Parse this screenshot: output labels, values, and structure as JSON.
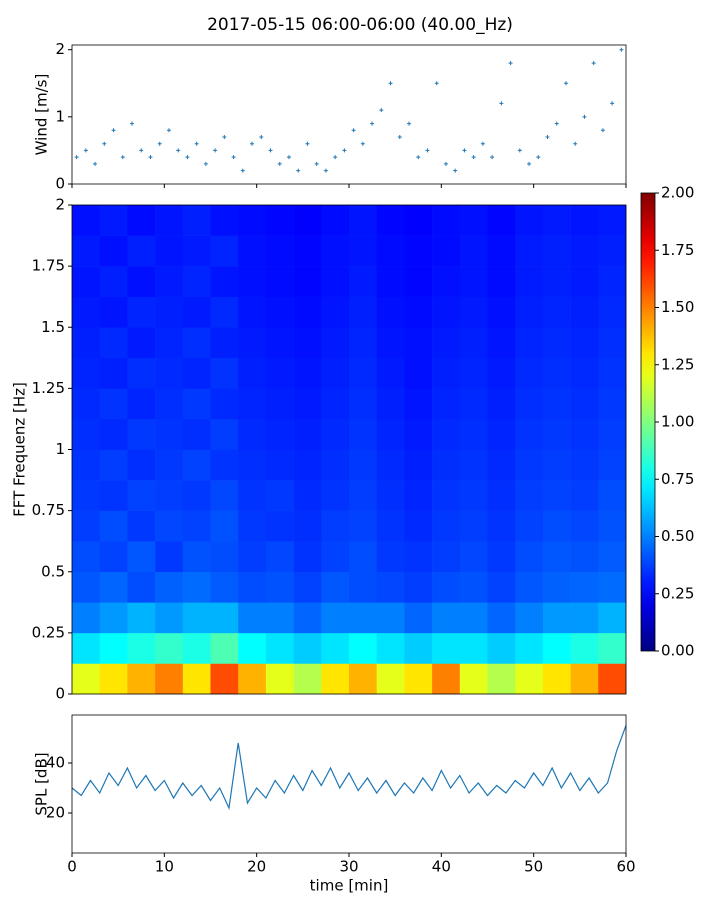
{
  "chart_data": [
    {
      "type": "scatter",
      "title": "2017-05-15 06:00-06:00 (40.00_Hz)",
      "y_label": "Wind [m/s]",
      "color": "#1f77b4",
      "x": [
        0.5,
        1.5,
        2.5,
        3.5,
        4.5,
        5.5,
        6.5,
        7.5,
        8.5,
        9.5,
        10.5,
        11.5,
        12.5,
        13.5,
        14.5,
        15.5,
        16.5,
        17.5,
        18.5,
        19.5,
        20.5,
        21.5,
        22.5,
        23.5,
        24.5,
        25.5,
        26.5,
        27.5,
        28.5,
        29.5,
        30.5,
        31.5,
        32.5,
        33.5,
        34.5,
        35.5,
        36.5,
        37.5,
        38.5,
        39.5,
        40.5,
        41.5,
        42.5,
        43.5,
        44.5,
        45.5,
        46.5,
        47.5,
        48.5,
        49.5,
        50.5,
        51.5,
        52.5,
        53.5,
        54.5,
        55.5,
        56.5,
        57.5,
        58.5,
        59.5
      ],
      "values": [
        0.4,
        0.5,
        0.3,
        0.6,
        0.8,
        0.4,
        0.9,
        0.5,
        0.4,
        0.6,
        0.8,
        0.5,
        0.4,
        0.6,
        0.3,
        0.5,
        0.7,
        0.4,
        0.2,
        0.6,
        0.7,
        0.5,
        0.3,
        0.4,
        0.2,
        0.6,
        0.3,
        0.2,
        0.4,
        0.5,
        0.8,
        0.6,
        0.9,
        1.1,
        1.5,
        0.7,
        0.9,
        0.4,
        0.5,
        1.5,
        0.3,
        0.2,
        0.5,
        0.4,
        0.6,
        0.4,
        1.2,
        1.8,
        0.5,
        0.3,
        0.4,
        0.7,
        0.9,
        1.5,
        0.6,
        1.0,
        1.8,
        0.8,
        1.2,
        2.0
      ],
      "xlim": [
        0,
        60
      ],
      "xticks": [
        0,
        10,
        20,
        30,
        40,
        50,
        60
      ],
      "ylim": [
        0,
        2.07
      ],
      "yticks": [
        0,
        1,
        2
      ]
    },
    {
      "type": "heatmap",
      "y_label": "FFT Frequenz [Hz]",
      "colormap": "jet",
      "x": [
        0,
        3,
        6,
        9,
        12,
        15,
        18,
        21,
        24,
        27,
        30,
        33,
        36,
        39,
        42,
        45,
        48,
        51,
        54,
        57,
        60
      ],
      "y": [
        0,
        0.125,
        0.25,
        0.375,
        0.5,
        0.625,
        0.75,
        0.875,
        1,
        1.125,
        1.25,
        1.375,
        1.5,
        1.625,
        1.75,
        1.875,
        2
      ],
      "z": [
        [
          1.2,
          1.3,
          1.4,
          1.5,
          1.3,
          1.6,
          1.4,
          1.2,
          1.1,
          1.3,
          1.4,
          1.2,
          1.3,
          1.5,
          1.2,
          1.1,
          1.2,
          1.3,
          1.4,
          1.6
        ],
        [
          0.7,
          0.75,
          0.8,
          0.85,
          0.8,
          0.9,
          0.75,
          0.7,
          0.65,
          0.7,
          0.75,
          0.7,
          0.65,
          0.7,
          0.7,
          0.65,
          0.7,
          0.75,
          0.8,
          0.85
        ],
        [
          0.5,
          0.55,
          0.6,
          0.55,
          0.6,
          0.6,
          0.5,
          0.5,
          0.45,
          0.5,
          0.5,
          0.5,
          0.45,
          0.5,
          0.5,
          0.45,
          0.5,
          0.55,
          0.55,
          0.6
        ],
        [
          0.42,
          0.45,
          0.4,
          0.44,
          0.46,
          0.43,
          0.4,
          0.41,
          0.38,
          0.42,
          0.4,
          0.39,
          0.37,
          0.4,
          0.41,
          0.38,
          0.42,
          0.44,
          0.45,
          0.46
        ],
        [
          0.4,
          0.38,
          0.42,
          0.36,
          0.41,
          0.4,
          0.37,
          0.39,
          0.35,
          0.38,
          0.4,
          0.36,
          0.35,
          0.37,
          0.39,
          0.36,
          0.4,
          0.42,
          0.41,
          0.43
        ],
        [
          0.37,
          0.4,
          0.36,
          0.39,
          0.38,
          0.41,
          0.36,
          0.35,
          0.34,
          0.37,
          0.38,
          0.35,
          0.33,
          0.36,
          0.37,
          0.35,
          0.38,
          0.4,
          0.39,
          0.41
        ],
        [
          0.36,
          0.35,
          0.38,
          0.37,
          0.36,
          0.39,
          0.35,
          0.36,
          0.33,
          0.35,
          0.37,
          0.34,
          0.32,
          0.35,
          0.36,
          0.34,
          0.37,
          0.38,
          0.37,
          0.4
        ],
        [
          0.35,
          0.37,
          0.34,
          0.36,
          0.38,
          0.35,
          0.34,
          0.33,
          0.32,
          0.34,
          0.36,
          0.33,
          0.31,
          0.34,
          0.35,
          0.33,
          0.36,
          0.37,
          0.36,
          0.38
        ],
        [
          0.34,
          0.33,
          0.36,
          0.35,
          0.34,
          0.37,
          0.33,
          0.32,
          0.31,
          0.33,
          0.35,
          0.32,
          0.3,
          0.33,
          0.34,
          0.32,
          0.35,
          0.36,
          0.35,
          0.37
        ],
        [
          0.33,
          0.35,
          0.32,
          0.34,
          0.36,
          0.33,
          0.32,
          0.31,
          0.3,
          0.32,
          0.34,
          0.31,
          0.29,
          0.32,
          0.33,
          0.31,
          0.34,
          0.35,
          0.34,
          0.36
        ],
        [
          0.32,
          0.31,
          0.34,
          0.33,
          0.32,
          0.35,
          0.31,
          0.3,
          0.29,
          0.31,
          0.33,
          0.3,
          0.28,
          0.31,
          0.32,
          0.3,
          0.33,
          0.34,
          0.33,
          0.35
        ],
        [
          0.31,
          0.33,
          0.3,
          0.32,
          0.34,
          0.31,
          0.3,
          0.29,
          0.28,
          0.3,
          0.32,
          0.29,
          0.28,
          0.3,
          0.31,
          0.29,
          0.32,
          0.33,
          0.32,
          0.34
        ],
        [
          0.3,
          0.29,
          0.32,
          0.31,
          0.3,
          0.33,
          0.29,
          0.28,
          0.27,
          0.29,
          0.31,
          0.28,
          0.27,
          0.29,
          0.3,
          0.28,
          0.31,
          0.32,
          0.31,
          0.33
        ],
        [
          0.29,
          0.31,
          0.28,
          0.3,
          0.32,
          0.29,
          0.28,
          0.27,
          0.26,
          0.28,
          0.3,
          0.27,
          0.26,
          0.28,
          0.29,
          0.27,
          0.3,
          0.31,
          0.3,
          0.32
        ],
        [
          0.3,
          0.28,
          0.31,
          0.29,
          0.3,
          0.32,
          0.28,
          0.27,
          0.26,
          0.28,
          0.29,
          0.27,
          0.26,
          0.27,
          0.29,
          0.27,
          0.3,
          0.31,
          0.3,
          0.31
        ],
        [
          0.28,
          0.3,
          0.27,
          0.29,
          0.31,
          0.28,
          0.27,
          0.26,
          0.25,
          0.27,
          0.29,
          0.26,
          0.25,
          0.27,
          0.28,
          0.26,
          0.29,
          0.3,
          0.29,
          0.3
        ]
      ],
      "xlim": [
        0,
        60
      ],
      "ylim": [
        0,
        2
      ],
      "yticks": [
        0,
        0.25,
        0.5,
        0.75,
        1,
        1.25,
        1.5,
        1.75,
        2
      ],
      "colorbar_lim": [
        0,
        2
      ],
      "colorbar_ticks": [
        {
          "value": 0,
          "label": "0.00"
        },
        {
          "value": 0.25,
          "label": "0.25"
        },
        {
          "value": 0.5,
          "label": "0.50"
        },
        {
          "value": 0.75,
          "label": "0.75"
        },
        {
          "value": 1,
          "label": "1.00"
        },
        {
          "value": 1.25,
          "label": "1.25"
        },
        {
          "value": 1.5,
          "label": "1.50"
        },
        {
          "value": 1.75,
          "label": "1.75"
        },
        {
          "value": 2,
          "label": "2.00"
        }
      ]
    },
    {
      "type": "line",
      "y_label": "SPL [dB]",
      "x_label": "time [min]",
      "color": "#1f77b4",
      "x": [
        0,
        1,
        2,
        3,
        4,
        5,
        6,
        7,
        8,
        9,
        10,
        11,
        12,
        13,
        14,
        15,
        16,
        17,
        18,
        19,
        20,
        21,
        22,
        23,
        24,
        25,
        26,
        27,
        28,
        29,
        30,
        31,
        32,
        33,
        34,
        35,
        36,
        37,
        38,
        39,
        40,
        41,
        42,
        43,
        44,
        45,
        46,
        47,
        48,
        49,
        50,
        51,
        52,
        53,
        54,
        55,
        56,
        57,
        58,
        59,
        60
      ],
      "values": [
        30,
        27,
        33,
        28,
        36,
        31,
        38,
        30,
        35,
        29,
        33,
        26,
        32,
        27,
        31,
        25,
        30,
        22,
        48,
        24,
        30,
        26,
        33,
        28,
        35,
        29,
        37,
        31,
        38,
        30,
        36,
        29,
        34,
        28,
        33,
        27,
        32,
        28,
        34,
        29,
        37,
        30,
        35,
        28,
        32,
        27,
        31,
        28,
        33,
        30,
        36,
        31,
        38,
        30,
        36,
        29,
        34,
        28,
        32,
        45,
        55
      ],
      "xlim": [
        0,
        60
      ],
      "xticks": [
        0,
        10,
        20,
        30,
        40,
        50,
        60
      ],
      "ylim": [
        4,
        59.2
      ],
      "yticks": [
        20,
        40
      ]
    }
  ]
}
